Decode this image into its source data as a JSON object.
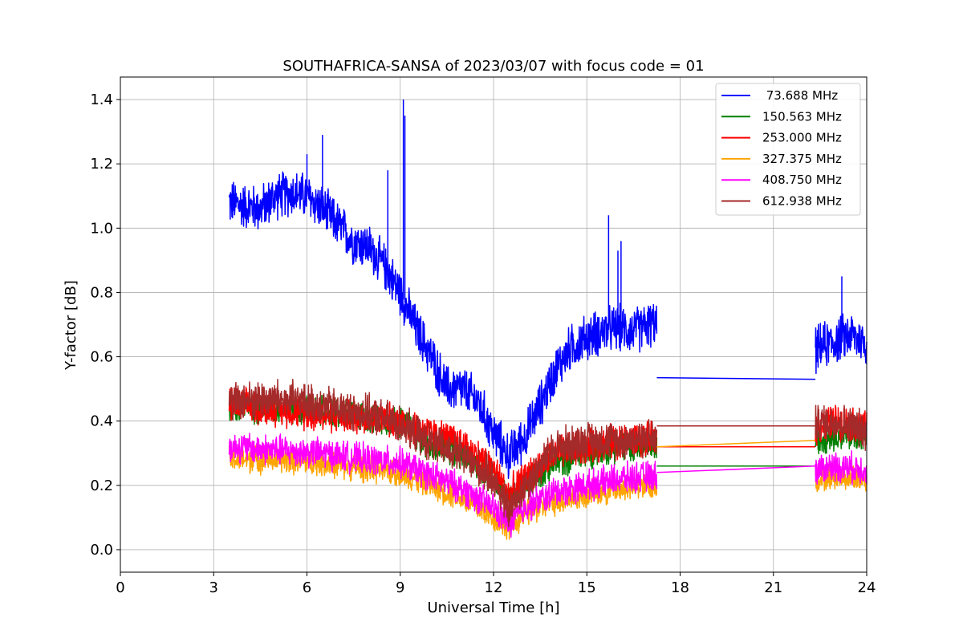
{
  "chart_data": {
    "type": "line",
    "title": "SOUTHAFRICA-SANSA of 2023/03/07 with focus code = 01",
    "xlabel": "Universal Time [h]",
    "ylabel": "Y-factor [dB]",
    "xlim": [
      0,
      24
    ],
    "ylim": [
      -0.07,
      1.47
    ],
    "xticks": [
      0,
      3,
      6,
      9,
      12,
      15,
      18,
      21,
      24
    ],
    "yticks": [
      0.0,
      0.2,
      0.4,
      0.6,
      0.8,
      1.0,
      1.2,
      1.4
    ],
    "ytick_labels": [
      "0.0",
      "0.2",
      "0.4",
      "0.6",
      "0.8",
      "1.0",
      "1.2",
      "1.4"
    ],
    "grid": true,
    "legend_position": "top-right",
    "gap": [
      17.25,
      22.35
    ],
    "series": [
      {
        "name": " 73.688 MHz",
        "color": "#0000ff",
        "noise": 0.06,
        "x": [
          3.5,
          4.0,
          4.5,
          5.0,
          5.5,
          6.0,
          6.5,
          7.0,
          7.5,
          8.0,
          8.5,
          9.0,
          9.5,
          10.0,
          10.5,
          11.0,
          11.5,
          12.0,
          12.5,
          13.0,
          13.5,
          14.0,
          14.5,
          15.0,
          15.5,
          16.0,
          16.5,
          17.0,
          17.25,
          22.35,
          22.5,
          23.0,
          23.5,
          24.0
        ],
        "y": [
          1.08,
          1.07,
          1.06,
          1.1,
          1.11,
          1.1,
          1.06,
          1.01,
          0.96,
          0.94,
          0.88,
          0.8,
          0.69,
          0.6,
          0.5,
          0.5,
          0.46,
          0.36,
          0.29,
          0.35,
          0.45,
          0.56,
          0.63,
          0.66,
          0.68,
          0.69,
          0.68,
          0.7,
          0.7,
          0.62,
          0.63,
          0.65,
          0.67,
          0.64
        ],
        "spikes": [
          [
            6.0,
            1.23
          ],
          [
            6.5,
            1.29
          ],
          [
            9.1,
            1.4
          ],
          [
            9.15,
            1.35
          ],
          [
            8.6,
            1.18
          ],
          [
            15.7,
            1.04
          ],
          [
            16.0,
            0.93
          ],
          [
            16.1,
            0.96
          ],
          [
            23.2,
            0.85
          ]
        ],
        "bridge": [
          [
            17.25,
            0.535
          ],
          [
            22.35,
            0.53
          ]
        ]
      },
      {
        "name": "150.563 MHz",
        "color": "#008000",
        "noise": 0.04,
        "x": [
          3.5,
          5.0,
          6.5,
          8.0,
          9.0,
          10.0,
          11.0,
          12.0,
          12.5,
          13.0,
          14.0,
          15.0,
          16.0,
          17.25,
          22.35,
          23.0,
          24.0
        ],
        "y": [
          0.44,
          0.44,
          0.43,
          0.41,
          0.4,
          0.32,
          0.3,
          0.22,
          0.15,
          0.2,
          0.27,
          0.3,
          0.32,
          0.32,
          0.34,
          0.36,
          0.35
        ],
        "bridge": [
          [
            17.25,
            0.26
          ],
          [
            22.35,
            0.26
          ]
        ]
      },
      {
        "name": "253.000 MHz",
        "color": "#ff0000",
        "noise": 0.045,
        "x": [
          3.5,
          5.0,
          6.5,
          8.0,
          9.0,
          10.0,
          11.0,
          12.0,
          12.5,
          13.0,
          14.0,
          15.0,
          16.0,
          17.25,
          22.35,
          23.0,
          24.0
        ],
        "y": [
          0.45,
          0.44,
          0.42,
          0.41,
          0.4,
          0.36,
          0.33,
          0.25,
          0.17,
          0.22,
          0.3,
          0.32,
          0.34,
          0.34,
          0.38,
          0.4,
          0.38
        ],
        "bridge": [
          [
            17.25,
            0.32
          ],
          [
            22.35,
            0.32
          ]
        ]
      },
      {
        "name": "327.375 MHz",
        "color": "#ffa500",
        "noise": 0.035,
        "x": [
          3.5,
          5.0,
          6.5,
          8.0,
          9.0,
          10.0,
          11.0,
          12.0,
          12.5,
          13.0,
          14.0,
          15.0,
          16.0,
          17.25,
          22.35,
          23.0,
          24.0
        ],
        "y": [
          0.28,
          0.28,
          0.27,
          0.25,
          0.24,
          0.2,
          0.16,
          0.1,
          0.07,
          0.11,
          0.15,
          0.17,
          0.19,
          0.2,
          0.22,
          0.23,
          0.22
        ],
        "bridge": [
          [
            17.25,
            0.32
          ],
          [
            22.35,
            0.34
          ]
        ]
      },
      {
        "name": "408.750 MHz",
        "color": "#ff00ff",
        "noise": 0.04,
        "x": [
          3.5,
          5.0,
          6.5,
          8.0,
          9.0,
          10.0,
          11.0,
          12.0,
          12.5,
          13.0,
          14.0,
          15.0,
          16.0,
          17.25,
          22.35,
          23.0,
          24.0
        ],
        "y": [
          0.32,
          0.31,
          0.3,
          0.28,
          0.27,
          0.23,
          0.19,
          0.13,
          0.08,
          0.13,
          0.18,
          0.2,
          0.22,
          0.23,
          0.25,
          0.26,
          0.25
        ],
        "bridge": [
          [
            17.25,
            0.24
          ],
          [
            22.35,
            0.26
          ]
        ]
      },
      {
        "name": "612.938 MHz",
        "color": "#a52a2a",
        "noise": 0.05,
        "x": [
          3.5,
          5.0,
          6.5,
          8.0,
          9.0,
          10.0,
          11.0,
          12.0,
          12.5,
          13.0,
          14.0,
          15.0,
          16.0,
          17.25,
          22.35,
          23.0,
          24.0
        ],
        "y": [
          0.46,
          0.47,
          0.45,
          0.42,
          0.39,
          0.33,
          0.29,
          0.22,
          0.12,
          0.2,
          0.32,
          0.34,
          0.34,
          0.35,
          0.39,
          0.4,
          0.37
        ],
        "bridge": [
          [
            17.25,
            0.385
          ],
          [
            22.35,
            0.385
          ]
        ]
      }
    ]
  }
}
